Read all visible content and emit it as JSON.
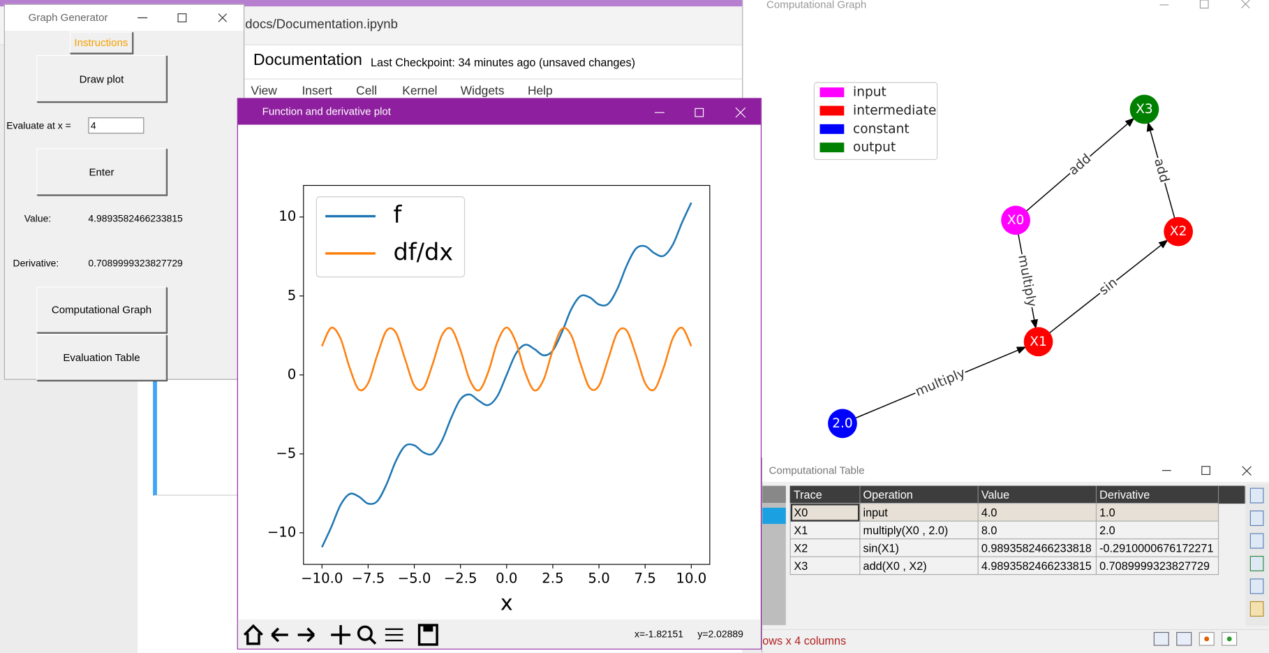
{
  "notebook": {
    "path": "docs/Documentation.ipynb",
    "title": "Documentation",
    "checkpoint": "Last Checkpoint: 34 minutes ago (unsaved changes)",
    "menu": [
      "View",
      "Insert",
      "Cell",
      "Kernel",
      "Widgets",
      "Help"
    ]
  },
  "graph_generator": {
    "title": "Graph Generator",
    "instructions": "Instructions",
    "draw_plot": "Draw plot",
    "evaluate_label": "Evaluate at x =",
    "x_input": "4",
    "enter": "Enter",
    "value_label": "Value:",
    "value": "4.9893582466233815",
    "derivative_label": "Derivative:",
    "derivative": "0.7089999323827729",
    "computational_graph": "Computational Graph",
    "evaluation_table": "Evaluation Table"
  },
  "plot_window": {
    "title": "Function and derivative plot",
    "status_x": "x=-1.82151",
    "status_y": "y=2.02889"
  },
  "chart_data": {
    "type": "line",
    "xlabel": "x",
    "x": [
      -10,
      -9.5,
      -9,
      -8.5,
      -8,
      -7.5,
      -7,
      -6.5,
      -6,
      -5.5,
      -5,
      -4.5,
      -4,
      -3.5,
      -3,
      -2.5,
      -2,
      -1.5,
      -1,
      -0.5,
      0,
      0.5,
      1,
      1.5,
      2,
      2.5,
      3,
      3.5,
      4,
      4.5,
      5,
      5.5,
      6,
      6.5,
      7,
      7.5,
      8,
      8.5,
      9,
      9.5,
      10
    ],
    "series": [
      {
        "name": "f",
        "color": "#1f77b4",
        "values": [
          -10.91,
          -9.65,
          -8.25,
          -7.54,
          -7.71,
          -8.15,
          -7.99,
          -6.92,
          -5.46,
          -4.5,
          -4.46,
          -4.91,
          -4.99,
          -4.16,
          -2.72,
          -1.54,
          -1.24,
          -1.64,
          -1.91,
          -1.34,
          0,
          1.34,
          1.91,
          1.64,
          1.24,
          1.54,
          2.72,
          4.16,
          4.99,
          4.91,
          4.46,
          4.5,
          5.46,
          6.92,
          7.99,
          8.15,
          7.71,
          7.54,
          8.25,
          9.65,
          10.91
        ]
      },
      {
        "name": "df/dx",
        "color": "#ff7f0e",
        "values": [
          1.82,
          2.98,
          2.32,
          0.45,
          -0.92,
          -0.52,
          1.27,
          2.81,
          2.69,
          1.01,
          -0.68,
          -0.82,
          0.71,
          2.51,
          2.92,
          1.57,
          -0.31,
          -0.98,
          0.17,
          2.08,
          3,
          2.08,
          0.17,
          -0.98,
          -0.31,
          1.57,
          2.92,
          2.51,
          0.71,
          -0.82,
          -0.68,
          1.01,
          2.69,
          2.81,
          1.27,
          -0.52,
          -0.92,
          0.45,
          2.32,
          2.98,
          1.82
        ]
      }
    ],
    "xlim": [
      -11,
      11
    ],
    "ylim": [
      -12,
      12
    ],
    "xticks": [
      {
        "value": -10,
        "label": "−10.0"
      },
      {
        "value": -7.5,
        "label": "−7.5"
      },
      {
        "value": -5,
        "label": "−5.0"
      },
      {
        "value": -2.5,
        "label": "−2.5"
      },
      {
        "value": 0,
        "label": "0.0"
      },
      {
        "value": 2.5,
        "label": "2.5"
      },
      {
        "value": 5,
        "label": "5.0"
      },
      {
        "value": 7.5,
        "label": "7.5"
      },
      {
        "value": 10,
        "label": "10.0"
      }
    ],
    "yticks": [
      {
        "value": -10,
        "label": "−10"
      },
      {
        "value": -5,
        "label": "−5"
      },
      0,
      5,
      10
    ],
    "grid": false,
    "legend": "upper left"
  },
  "graph_window": {
    "title": "Computational Graph",
    "legend": [
      {
        "label": "input",
        "color": "#ff00ff"
      },
      {
        "label": "intermediate",
        "color": "#ff0000"
      },
      {
        "label": "constant",
        "color": "#0000ff"
      },
      {
        "label": "output",
        "color": "#008000"
      }
    ],
    "nodes": [
      {
        "label": "X0",
        "color": "#ff00ff"
      },
      {
        "label": "X1",
        "color": "#ff0000"
      },
      {
        "label": "X2",
        "color": "#ff0000"
      },
      {
        "label": "X3",
        "color": "#008000"
      },
      {
        "label": "2.0",
        "color": "#0000ff"
      }
    ],
    "edges": [
      {
        "label": "multiply"
      },
      {
        "label": "multiply"
      },
      {
        "label": "sin"
      },
      {
        "label": "add"
      },
      {
        "label": "add"
      }
    ]
  },
  "table_window": {
    "title": "Computational Table",
    "columns": [
      "Trace",
      "Operation",
      "Value",
      "Derivative"
    ],
    "rows": [
      [
        "X0",
        "input",
        "4.0",
        "1.0"
      ],
      [
        "X1",
        "multiply(X0 , 2.0)",
        "8.0",
        "2.0"
      ],
      [
        "X2",
        "sin(X1)",
        "0.9893582466233818",
        "-0.2910000676172271"
      ],
      [
        "X3",
        "add(X0 , X2)",
        "4.9893582466233815",
        "0.7089999323827729"
      ]
    ],
    "footer": "ows x 4 columns"
  }
}
